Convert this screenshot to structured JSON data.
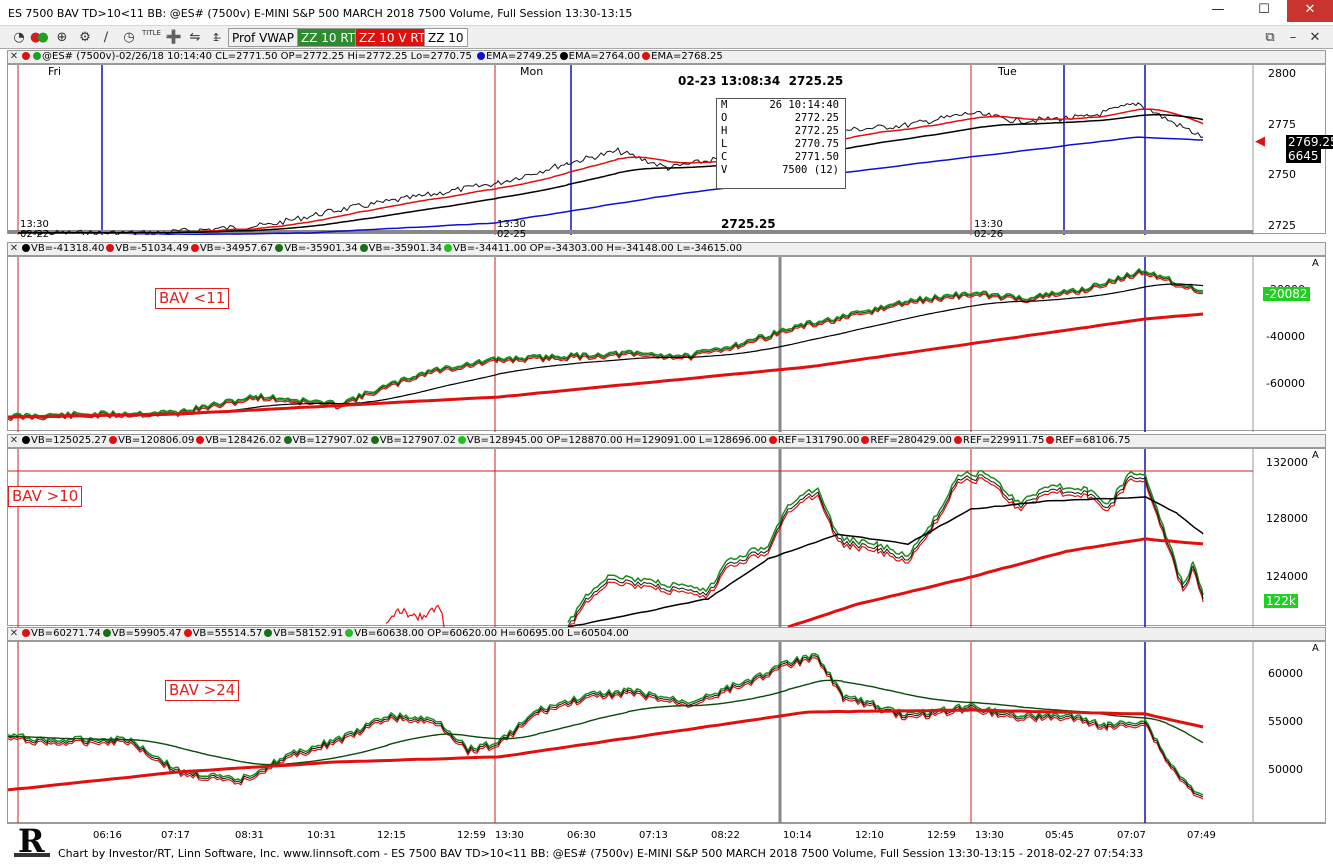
{
  "window": {
    "title": "ES 7500 BAV TD>10<11 BB: @ES# (7500v) E-MINI S&P 500 MARCH 2018 7500 Volume, Full Session 13:30-13:15"
  },
  "toolbar": {
    "icons": [
      "pie-icon",
      "circles-icon",
      "zoom-icon",
      "gear-icon",
      "line-tool-icon",
      "clock-icon",
      "title-icon",
      "crosshair-icon",
      "scale-icon",
      "text-tool-icon"
    ],
    "title_icon_text": "TITLE",
    "buttons": [
      {
        "label": "Prof VWAP",
        "bg": "#f0f0f0",
        "fg": "#000000"
      },
      {
        "label": "ZZ 10 RT",
        "bg": "#2e8b2e",
        "fg": "#ffffff"
      },
      {
        "label": "ZZ 10 V RT",
        "bg": "#e01010",
        "fg": "#ffffff"
      },
      {
        "label": "ZZ 10",
        "bg": "#ffffff",
        "fg": "#000000"
      }
    ]
  },
  "price_pane": {
    "header": "@ES# (7500v)-02/26/18 10:14:40 CL=2771.50 OP=2772.25 Hi=2772.25 Lo=2770.75",
    "emas": [
      {
        "label": "EMA=2749.25",
        "color": "#1010d0"
      },
      {
        "label": "EMA=2764.00",
        "color": "#000000"
      },
      {
        "label": "EMA=2768.25",
        "color": "#e01010"
      }
    ],
    "day_labels": [
      "Fri",
      "Mon",
      "Tue"
    ],
    "session_labels": [
      {
        "time": "13:30",
        "date": "02-22"
      },
      {
        "time": "13:30",
        "date": "02-25"
      },
      {
        "time": "13:30",
        "date": "02-26"
      }
    ],
    "cursor_label": "02-23 13:08:34  2725.25",
    "cursor_price": "2725.25",
    "yticks": [
      "2800",
      "2775",
      "2750",
      "2725"
    ],
    "last_price": "2769.25",
    "last_volume": "6645",
    "ohlc_box": [
      {
        "k": "M",
        "v": "26 10:14:40"
      },
      {
        "k": "O",
        "v": "2772.25"
      },
      {
        "k": "H",
        "v": "2772.25"
      },
      {
        "k": "L",
        "v": "2770.75"
      },
      {
        "k": "C",
        "v": "2771.50"
      },
      {
        "k": "V",
        "v": "7500 (12)"
      }
    ]
  },
  "bav11_pane": {
    "label": "BAV <11",
    "header_items": [
      {
        "text": "VB=-41318.40",
        "color": "#000000"
      },
      {
        "text": "VB=-51034.49",
        "color": "#e01010"
      },
      {
        "text": "VB=-34957.67",
        "color": "#e01010"
      },
      {
        "text": "VB=-35901.34",
        "color": "#1a6e1a"
      },
      {
        "text": "VB=-35901.34",
        "color": "#1a6e1a"
      },
      {
        "text": "VB=-34411.00 OP=-34303.00 H=-34148.00 L=-34615.00",
        "color": "#20c020"
      }
    ],
    "scale_flag": "A",
    "yticks": [
      "-20000",
      "-40000",
      "-60000"
    ],
    "last_value": "-20082"
  },
  "bav10_pane": {
    "label": "BAV >10",
    "header_items": [
      {
        "text": "VB=125025.27",
        "color": "#000000"
      },
      {
        "text": "VB=120806.09",
        "color": "#e01010"
      },
      {
        "text": "VB=128426.02",
        "color": "#e01010"
      },
      {
        "text": "VB=127907.02",
        "color": "#1a6e1a"
      },
      {
        "text": "VB=127907.02",
        "color": "#1a6e1a"
      },
      {
        "text": "VB=128945.00 OP=128870.00 H=129091.00 L=128696.00",
        "color": "#20c020"
      },
      {
        "text": "REF=131790.00",
        "color": "#e01010"
      },
      {
        "text": "REF=280429.00",
        "color": "#e01010"
      },
      {
        "text": "REF=229911.75",
        "color": "#e01010"
      },
      {
        "text": "REF=68106.75",
        "color": "#e01010"
      }
    ],
    "scale_flag": "A",
    "yticks": [
      "132000",
      "128000",
      "124000"
    ],
    "last_value": "122k"
  },
  "bav24_pane": {
    "label": "BAV >24",
    "header_items": [
      {
        "text": "VB=60271.74",
        "color": "#e01010"
      },
      {
        "text": "VB=59905.47",
        "color": "#1a6e1a"
      },
      {
        "text": "VB=55514.57",
        "color": "#e01010"
      },
      {
        "text": "VB=58152.91",
        "color": "#1a6e1a"
      },
      {
        "text": "VB=60638.00 OP=60620.00 H=60695.00 L=60504.00",
        "color": "#20c020"
      }
    ],
    "scale_flag": "A",
    "yticks": [
      "60000",
      "55000",
      "50000"
    ]
  },
  "xaxis": {
    "ticks": [
      "06:16",
      "07:17",
      "08:31",
      "10:31",
      "12:15",
      "12:59",
      "13:30",
      "06:30",
      "07:13",
      "08:22",
      "10:14",
      "12:10",
      "12:59",
      "13:30",
      "05:45",
      "07:07",
      "07:49"
    ]
  },
  "statusbar": {
    "text": "Chart by Investor/RT, Linn Software, Inc. www.linnsoft.com - ES 7500 BAV TD>10<11 BB: @ES# (7500v) E-MINI S&P 500 MARCH 2018 7500 Volume, Full Session 13:30-13:15 - 2018-02-27 07:54:33"
  },
  "colors": {
    "ema_blue": "#1010d0",
    "red": "#e01010",
    "green": "#1a8c1a",
    "dark_green": "#0a4a0a",
    "session_line": "#d02020",
    "day_line": "#1010c0",
    "cursor_line": "#808080"
  }
}
